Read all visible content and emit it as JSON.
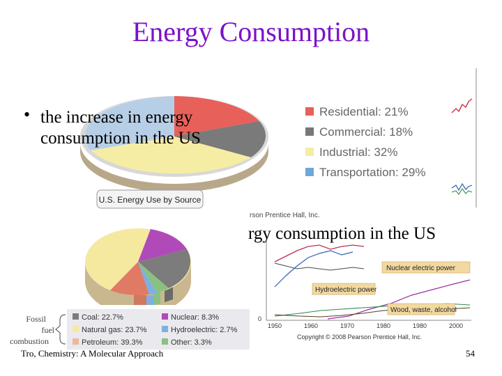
{
  "slide": {
    "title": "Energy Consumption",
    "bullet": "the increase in energy consumption in the US",
    "overlap_text": "rgy consumption in the US",
    "footer_left": "Tro, Chemistry: A Molecular Approach",
    "page_number": "54",
    "title_color": "#7b12c8"
  },
  "sector_chart": {
    "legend": [
      {
        "label": "Residential: 21%",
        "color": "#e8605a"
      },
      {
        "label": "Commercial: 18%",
        "color": "#777777"
      },
      {
        "label": "Industrial: 32%",
        "color": "#f6eda4"
      },
      {
        "label": "Transportation: 29%",
        "color": "#6ea7dc"
      }
    ],
    "caption": "U.S. Energy Use by Source",
    "credit": "rson Prentice Hall, Inc."
  },
  "source_chart": {
    "legend": [
      {
        "label": "Coal: 22.7%",
        "color": "#7c7c7c"
      },
      {
        "label": "Nuclear: 8.3%",
        "color": "#b04ab8"
      },
      {
        "label": "Natural gas: 23.7%",
        "color": "#f5e9a0"
      },
      {
        "label": "Hydroelectric: 2.7%",
        "color": "#7db0e0"
      },
      {
        "label": "Petroleum: 39.3%",
        "color": "#ecb8a0"
      },
      {
        "label": "Other: 3.3%",
        "color": "#8ac080"
      }
    ],
    "group_label_1": "Fossil",
    "group_label_2": "fuel",
    "group_label_3": "combustion"
  },
  "chart_data": {
    "type": "line",
    "x_ticks": [
      "1950",
      "1960",
      "1970",
      "1980",
      "1980",
      "2000"
    ],
    "y_tick_zero": "0",
    "series_labels": [
      "Nuclear electric power",
      "Hydroelectric power",
      "Wood, waste, alcohol"
    ],
    "credit": "Copyright © 2008 Pearson Prentice Hall, Inc."
  }
}
